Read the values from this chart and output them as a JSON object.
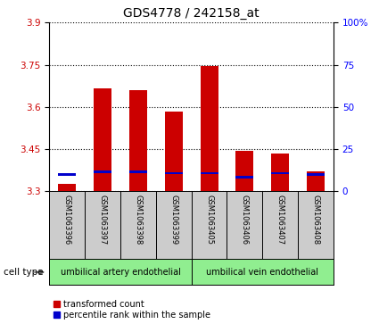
{
  "title": "GDS4778 / 242158_at",
  "samples": [
    "GSM1063396",
    "GSM1063397",
    "GSM1063398",
    "GSM1063399",
    "GSM1063405",
    "GSM1063406",
    "GSM1063407",
    "GSM1063408"
  ],
  "red_values": [
    3.325,
    3.665,
    3.66,
    3.585,
    3.745,
    3.445,
    3.435,
    3.37
  ],
  "blue_values": [
    3.355,
    3.365,
    3.365,
    3.36,
    3.36,
    3.345,
    3.36,
    3.355
  ],
  "blue_thickness": 0.008,
  "ylim_left": [
    3.3,
    3.9
  ],
  "yticks_left": [
    3.3,
    3.45,
    3.6,
    3.75,
    3.9
  ],
  "yticks_right": [
    0,
    25,
    50,
    75,
    100
  ],
  "ytick_right_labels": [
    "0",
    "25",
    "50",
    "75",
    "100%"
  ],
  "ylim_right": [
    0,
    100
  ],
  "bar_base": 3.3,
  "cell_types": [
    {
      "label": "umbilical artery endothelial",
      "start": 0,
      "end": 4
    },
    {
      "label": "umbilical vein endothelial",
      "start": 4,
      "end": 8
    }
  ],
  "cell_type_label": "cell type",
  "legend_red": "transformed count",
  "legend_blue": "percentile rank within the sample",
  "bar_width": 0.5,
  "red_color": "#cc0000",
  "blue_color": "#0000cc",
  "bg_plot": "#ffffff",
  "bg_xlabels": "#cccccc",
  "bg_cell_type": "#90ee90",
  "grid_color": "#000000",
  "title_fontsize": 10,
  "tick_fontsize": 7.5,
  "sample_fontsize": 6,
  "cell_type_fontsize": 7,
  "legend_fontsize": 7
}
